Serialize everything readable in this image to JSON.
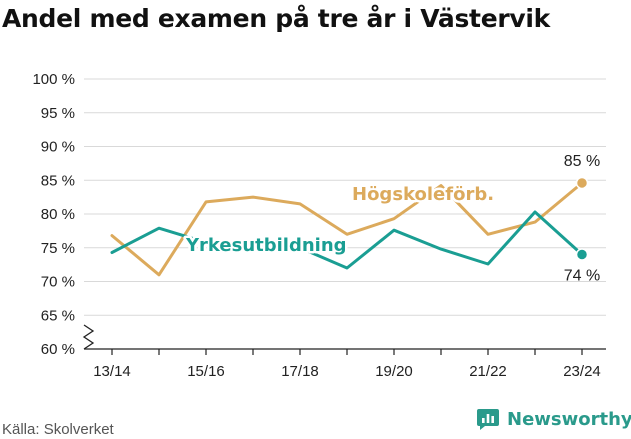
{
  "title": "Andel med examen på tre år i Västervik",
  "source": "Källa: Skolverket",
  "brand": {
    "name": "Newsworthy",
    "icon": "newsworthy-logo-icon"
  },
  "chart_data": {
    "type": "line",
    "title": "Andel med examen på tre år i Västervik",
    "x": [
      "13/14",
      "14/15",
      "15/16",
      "16/17",
      "17/18",
      "18/19",
      "19/20",
      "20/21",
      "21/22",
      "22/23",
      "23/24"
    ],
    "x_tick_labels": [
      "13/14",
      "15/16",
      "17/18",
      "19/20",
      "21/22",
      "23/24"
    ],
    "ylim": [
      60,
      100
    ],
    "y_ticks": [
      60,
      65,
      70,
      75,
      80,
      85,
      90,
      95,
      100
    ],
    "y_tick_labels": [
      "60 %",
      "65 %",
      "70 %",
      "75 %",
      "80 %",
      "85 %",
      "90 %",
      "95 %",
      "100 %"
    ],
    "y_axis_break": true,
    "grid": "horizontal",
    "legend": "inline labels",
    "series": [
      {
        "name": "Högskoleförb.",
        "color": "#dcaa5c",
        "values": [
          76.8,
          71.0,
          81.8,
          82.5,
          81.5,
          77.0,
          79.3,
          84.2,
          77.0,
          78.8,
          84.6
        ],
        "end_label": "85 %",
        "end_label_position": "above"
      },
      {
        "name": "Yrkesutbildning",
        "color": "#1a9e93",
        "values": [
          74.3,
          77.9,
          75.8,
          75.5,
          75.0,
          72.0,
          77.6,
          74.8,
          72.6,
          80.3,
          74.0
        ],
        "end_label": "74 %",
        "end_label_position": "below"
      }
    ]
  }
}
